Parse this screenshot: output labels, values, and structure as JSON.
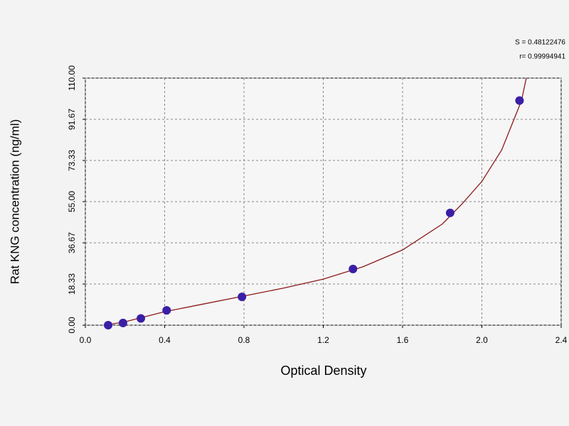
{
  "chart_data": {
    "type": "scatter",
    "x_label": "Optical Density",
    "y_label": "Rat KNG concentration (ng/ml)",
    "annotations": [
      "S = 0.48122476",
      "r= 0.99994941"
    ],
    "xlim": [
      0,
      2.4
    ],
    "xticks": [
      {
        "value": 0,
        "label": "0.0"
      },
      0.4,
      0.8,
      1.2,
      1.6,
      {
        "value": 2,
        "label": "2.0"
      },
      2.4
    ],
    "ylim": [
      0,
      110
    ],
    "yticks": [
      {
        "value": 0,
        "label": "0.00"
      },
      18.33,
      36.67,
      {
        "value": 55,
        "label": "55.00"
      },
      73.33,
      91.67,
      {
        "value": 110,
        "label": "110.00"
      }
    ],
    "grid": true,
    "points": {
      "color": "#3a1fa6",
      "x": [
        0.115,
        0.19,
        0.28,
        0.41,
        0.79,
        1.35,
        1.84,
        2.19
      ],
      "values": [
        0,
        1,
        3,
        6.6,
        12.6,
        25,
        50,
        100
      ]
    },
    "curve": {
      "color": "#8b1a1a",
      "x": [
        0.1,
        0.2,
        0.4,
        0.6,
        0.8,
        1.0,
        1.2,
        1.4,
        1.6,
        1.8,
        1.9,
        2.0,
        2.1,
        2.2,
        2.224
      ],
      "values": [
        0,
        1.5,
        6,
        9.5,
        13,
        16.5,
        20.5,
        26,
        33.5,
        45,
        54,
        64,
        78,
        100,
        110
      ]
    }
  }
}
